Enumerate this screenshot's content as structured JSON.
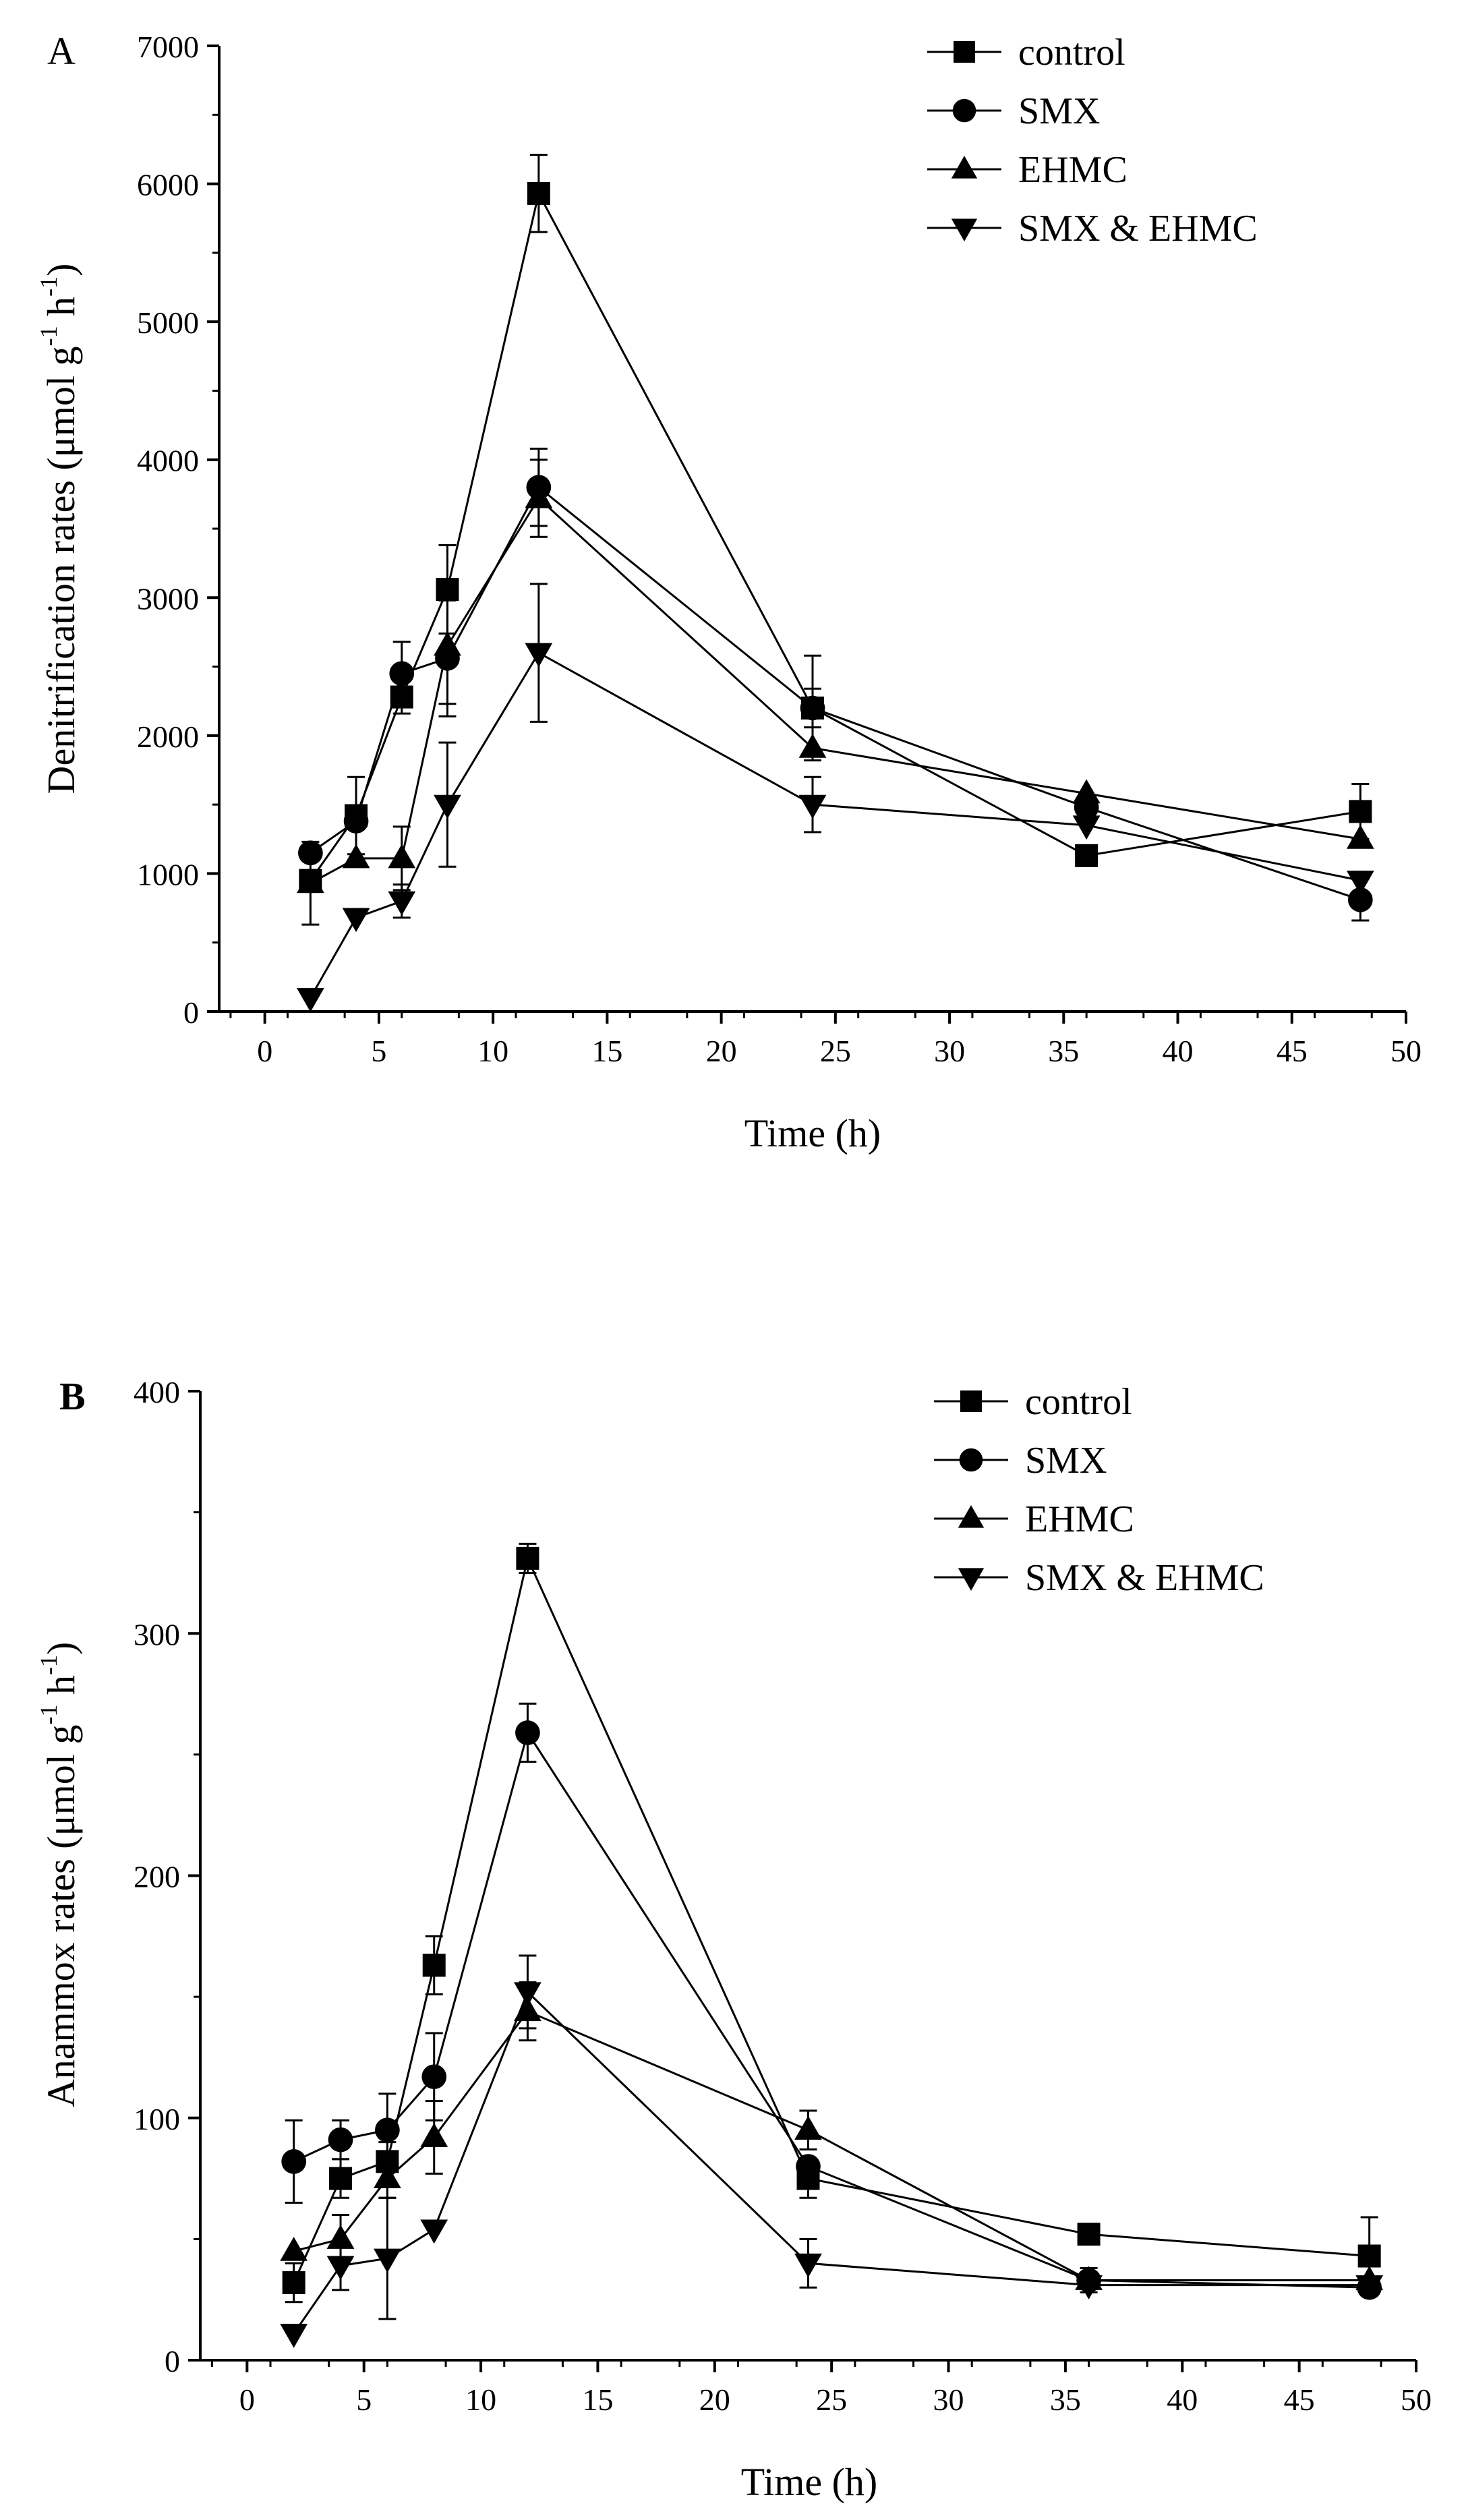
{
  "chart_data": [
    {
      "panel": "A",
      "type": "line",
      "xlabel": "Time (h)",
      "ylabel": "Denitrification rates (μmol g⁻¹ h⁻¹)",
      "ylabel_parts": {
        "main": "Denitrification rates (μmol g",
        "sup1": "-1",
        "mid": " h",
        "sup2": "-1",
        "end": ")"
      },
      "xlim": [
        -2,
        50
      ],
      "ylim": [
        0,
        7000
      ],
      "xticks": [
        0,
        5,
        10,
        15,
        20,
        25,
        30,
        35,
        40,
        45,
        50
      ],
      "yticks": [
        0,
        1000,
        2000,
        3000,
        4000,
        5000,
        6000,
        7000
      ],
      "xtick_labels": [
        "0",
        "5",
        "10",
        "15",
        "20",
        "25",
        "30",
        "35",
        "40",
        "45",
        "50"
      ],
      "ytick_labels": [
        "0",
        "1000",
        "2000",
        "3000",
        "4000",
        "5000",
        "6000",
        "7000"
      ],
      "legend_position": "top-right",
      "x": [
        2,
        4,
        6,
        8,
        12,
        24,
        36,
        48
      ],
      "series": [
        {
          "name": "control",
          "marker": "square",
          "values": [
            950,
            1420,
            2280,
            3060,
            5930,
            2200,
            1130,
            1450
          ],
          "errors": [
            0,
            280,
            120,
            320,
            280,
            140,
            0,
            200
          ]
        },
        {
          "name": "SMX",
          "marker": "circle",
          "values": [
            1150,
            1380,
            2450,
            2560,
            3800,
            2200,
            1480,
            810
          ],
          "errors": [
            0,
            0,
            230,
            420,
            280,
            380,
            0,
            150
          ]
        },
        {
          "name": "EHMC",
          "marker": "triangle-up",
          "values": [
            930,
            1110,
            1110,
            2650,
            3720,
            1910,
            1580,
            1250
          ],
          "errors": [
            300,
            0,
            230,
            420,
            280,
            0,
            0,
            0
          ]
        },
        {
          "name": "SMX & EHMC",
          "marker": "triangle-down",
          "values": [
            100,
            680,
            800,
            1500,
            2600,
            1500,
            1350,
            950
          ],
          "errors": [
            0,
            0,
            120,
            450,
            500,
            200,
            0,
            0
          ]
        }
      ]
    },
    {
      "panel": "B",
      "type": "line",
      "xlabel": "Time (h)",
      "ylabel": "Anammox rates (μmol g⁻¹ h⁻¹)",
      "ylabel_parts": {
        "main": "Anammox rates (μmol g",
        "sup1": "-1",
        "mid": " h",
        "sup2": "-1",
        "end": ")"
      },
      "xlim": [
        -2,
        50
      ],
      "ylim": [
        0,
        400
      ],
      "xticks": [
        0,
        5,
        10,
        15,
        20,
        25,
        30,
        35,
        40,
        45,
        50
      ],
      "yticks": [
        0,
        100,
        200,
        300,
        400
      ],
      "xtick_labels": [
        "0",
        "5",
        "10",
        "15",
        "20",
        "25",
        "30",
        "35",
        "40",
        "45",
        "50"
      ],
      "ytick_labels": [
        "0",
        "100",
        "200",
        "300",
        "400"
      ],
      "legend_position": "top-right",
      "x": [
        2,
        4,
        6,
        8,
        12,
        24,
        36,
        48
      ],
      "series": [
        {
          "name": "control",
          "marker": "square",
          "values": [
            32,
            75,
            82,
            163,
            331,
            75,
            52,
            43
          ],
          "errors": [
            8,
            8,
            8,
            12,
            6,
            8,
            3,
            16
          ]
        },
        {
          "name": "SMX",
          "marker": "circle",
          "values": [
            82,
            91,
            95,
            117,
            259,
            80,
            33,
            30
          ],
          "errors": [
            17,
            8,
            15,
            18,
            12,
            0,
            5,
            3
          ]
        },
        {
          "name": "EHMC",
          "marker": "triangle-up",
          "values": [
            45,
            50,
            75,
            92,
            144,
            95,
            33,
            33
          ],
          "errors": [
            0,
            10,
            8,
            15,
            12,
            8,
            0,
            0
          ]
        },
        {
          "name": "SMX & EHMC",
          "marker": "triangle-down",
          "values": [
            11,
            39,
            42,
            54,
            152,
            40,
            31,
            31
          ],
          "errors": [
            0,
            10,
            25,
            0,
            15,
            10,
            0,
            0
          ]
        }
      ]
    }
  ]
}
